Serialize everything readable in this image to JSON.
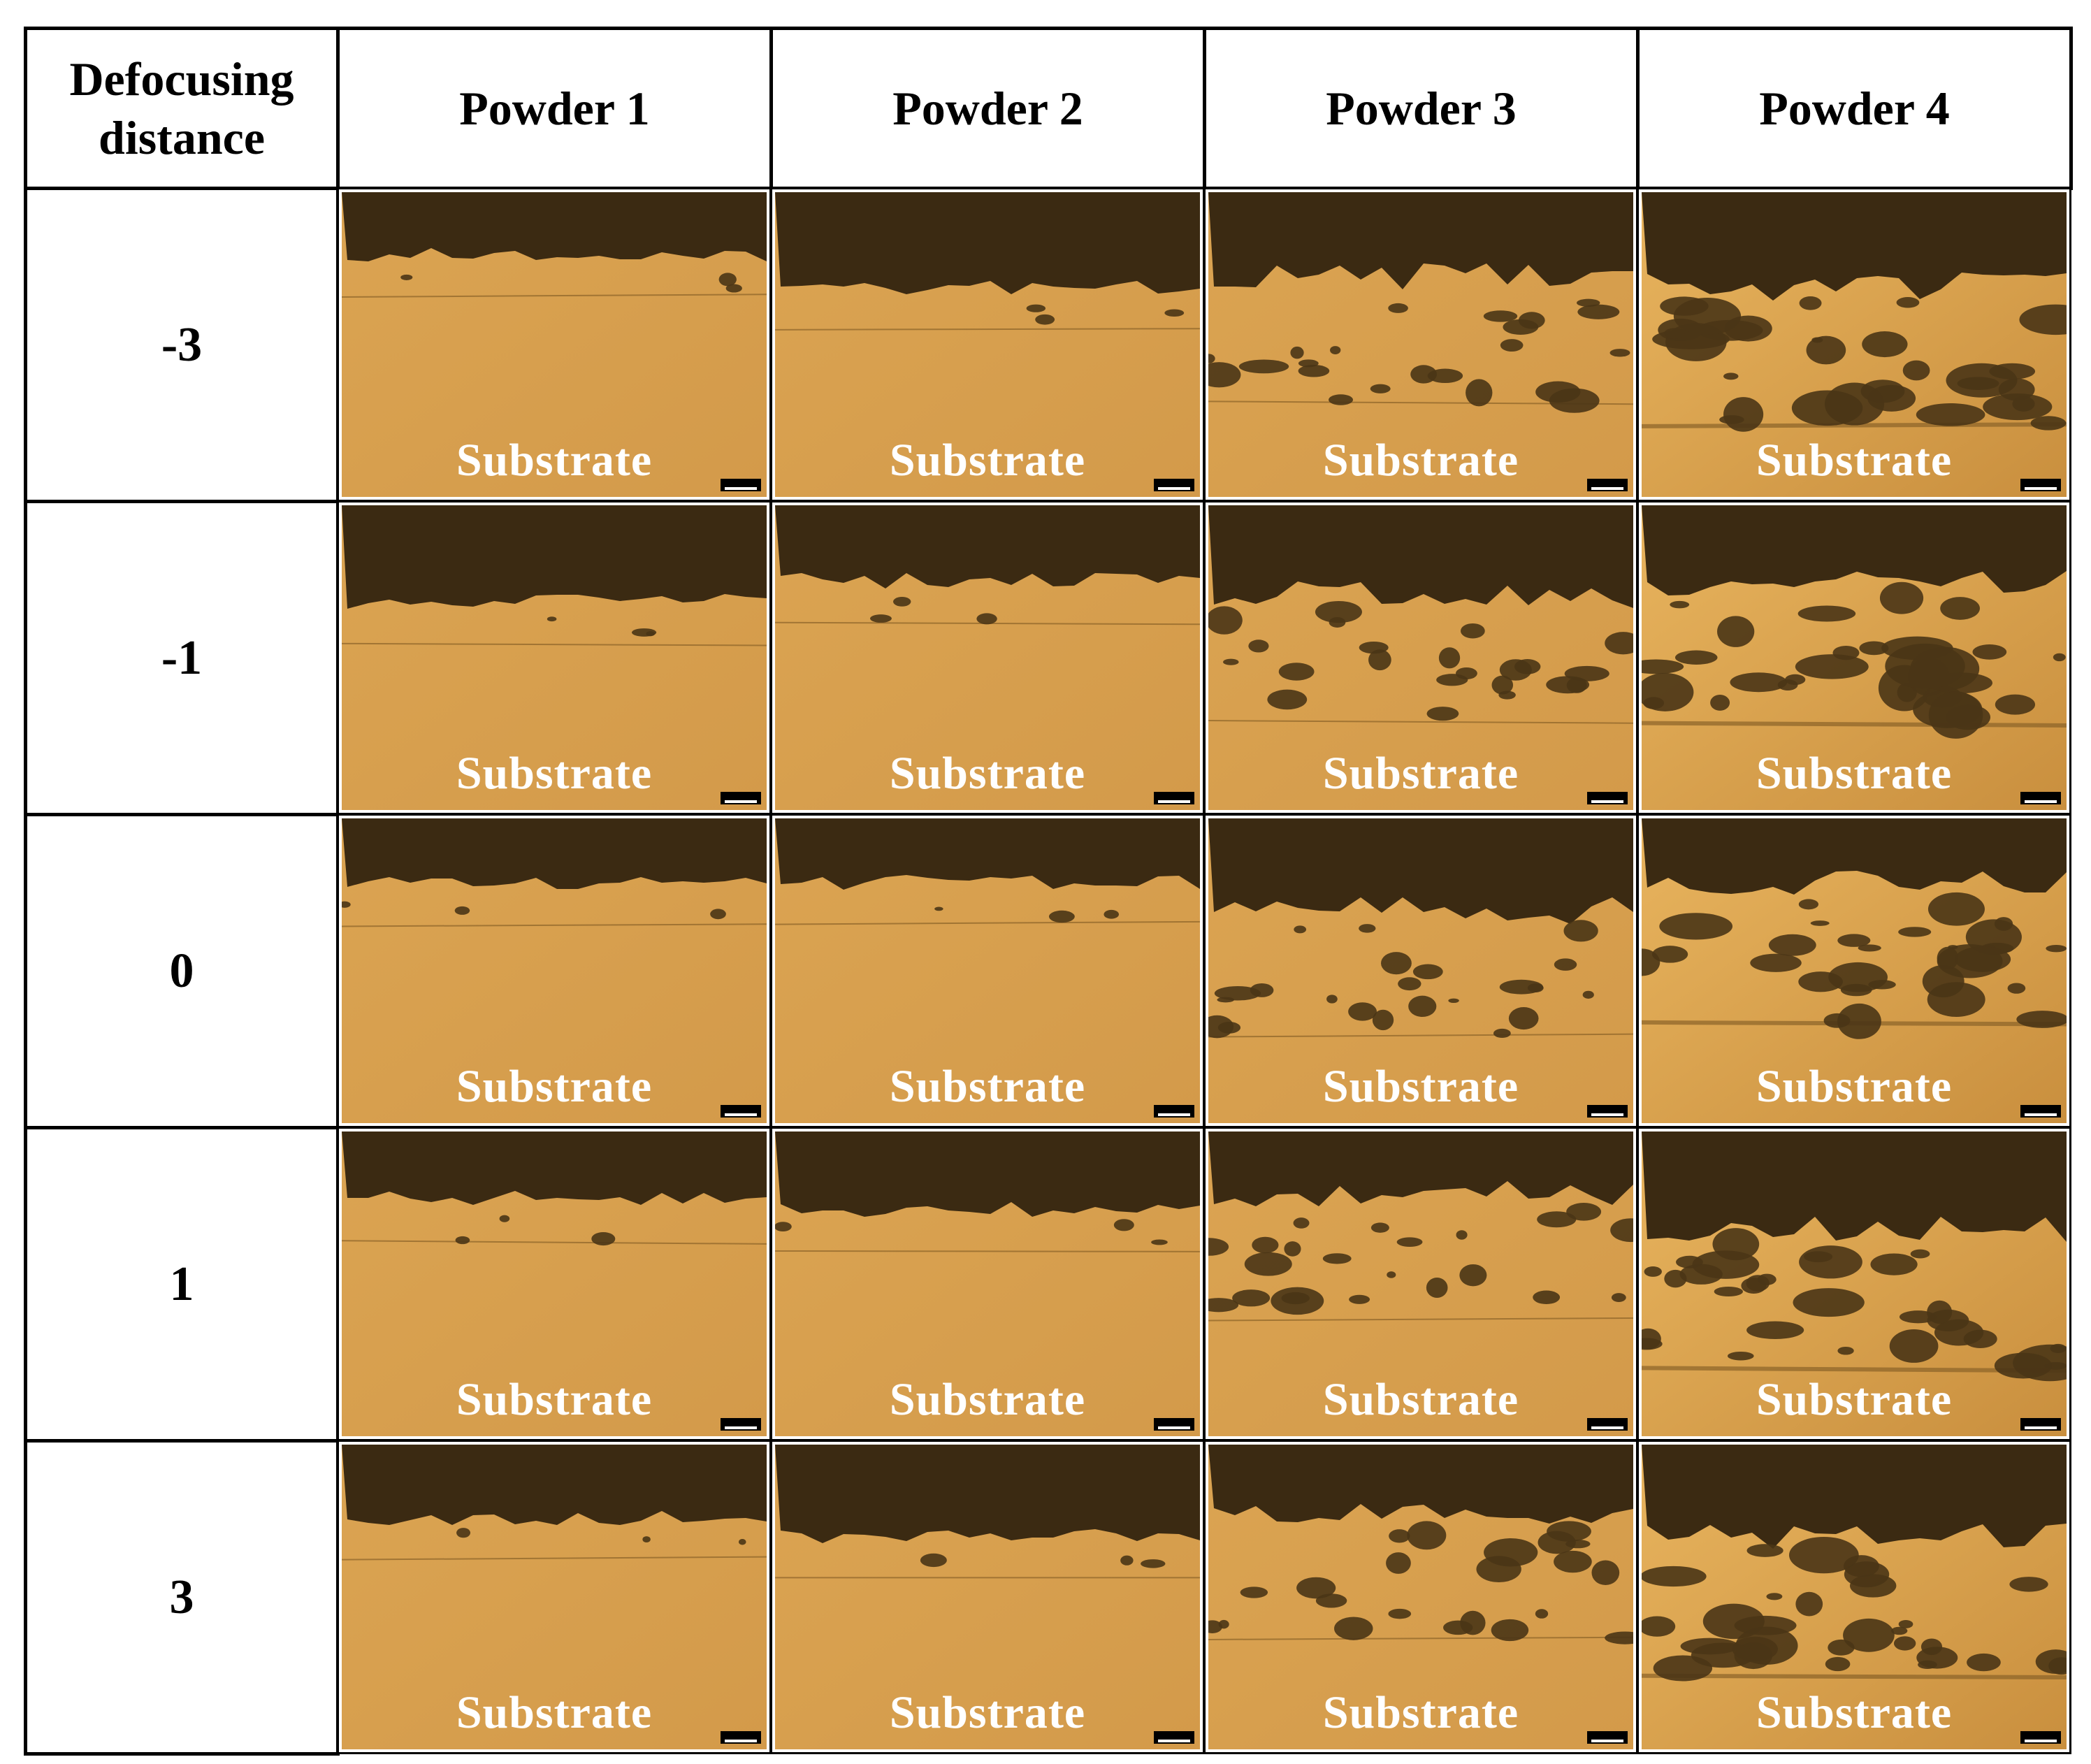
{
  "table": {
    "header": [
      "Defocusing distance",
      "Powder 1",
      "Powder 2",
      "Powder 3",
      "Powder 4"
    ],
    "rows": [
      {
        "label": "-3",
        "cells": [
          "Substrate",
          "Substrate",
          "Substrate",
          "Substrate"
        ]
      },
      {
        "label": "-1",
        "cells": [
          "Substrate",
          "Substrate",
          "Substrate",
          "Substrate"
        ]
      },
      {
        "label": "0",
        "cells": [
          "Substrate",
          "Substrate",
          "Substrate",
          "Substrate"
        ]
      },
      {
        "label": "1",
        "cells": [
          "Substrate",
          "Substrate",
          "Substrate",
          "Substrate"
        ]
      },
      {
        "label": "3",
        "cells": [
          "Substrate",
          "Substrate",
          "Substrate",
          "Substrate"
        ]
      }
    ]
  }
}
